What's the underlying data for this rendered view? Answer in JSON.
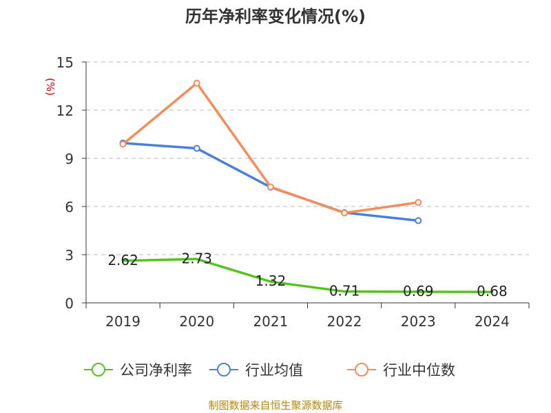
{
  "chart_data": {
    "type": "line",
    "title": "历年净利率变化情况(%)",
    "ylabel": "(%)",
    "xlabel": "",
    "categories": [
      "2019",
      "2020",
      "2021",
      "2022",
      "2023",
      "2024"
    ],
    "ylim": [
      0,
      15
    ],
    "yticks": [
      0,
      3,
      6,
      9,
      12,
      15
    ],
    "ytick_labels": [
      "0",
      "3",
      "6",
      "9",
      "12",
      "15"
    ],
    "grid": true,
    "legend_position": "bottom",
    "series": [
      {
        "name": "公司净利率",
        "color": "#52c41a",
        "values": [
          2.62,
          2.73,
          1.32,
          0.71,
          0.69,
          0.68
        ],
        "labels": [
          "2.62",
          "2.73",
          "1.32",
          "0.71",
          "0.69",
          "0.68"
        ]
      },
      {
        "name": "行业均值",
        "color": "#4a7fdc",
        "values": [
          9.95,
          9.62,
          7.2,
          5.62,
          5.12,
          null
        ]
      },
      {
        "name": "行业中位数",
        "color": "#f78b5a",
        "values": [
          9.88,
          13.68,
          7.22,
          5.6,
          6.25,
          null
        ]
      }
    ]
  },
  "footer": {
    "source": "制图数据来自恒生聚源数据库"
  }
}
